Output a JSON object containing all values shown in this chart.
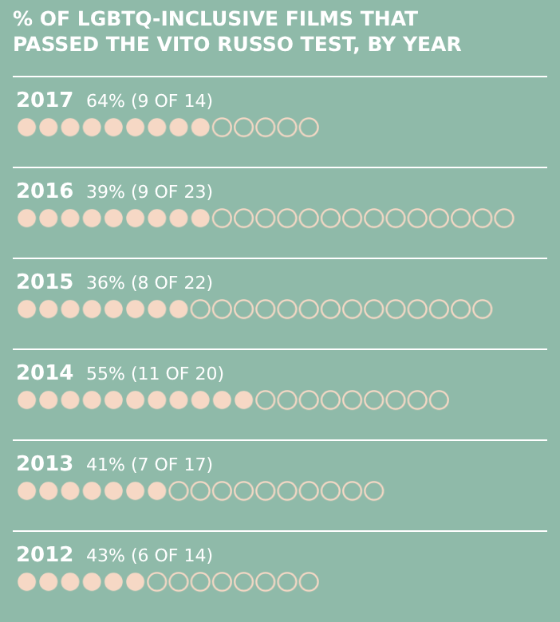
{
  "chart_data": {
    "type": "bar",
    "title": "% OF LGBTQ-INCLUSIVE FILMS THAT PASSED THE VITO RUSSO TEST, BY YEAR",
    "orientation": "horizontal",
    "stacked": true,
    "categories": [
      "2017",
      "2016",
      "2015",
      "2014",
      "2013",
      "2012"
    ],
    "series": [
      {
        "color": "#f6d8c5",
        "values": [
          9,
          9,
          8,
          11,
          7,
          6
        ],
        "value_labels": [
          "64% (9 OF 14)",
          "39% (9 OF 23)",
          "36% (8 OF 22)",
          "55% (11 OF 20)",
          "41% (7 OF 17)",
          "43% (6 OF 14)"
        ]
      },
      {
        "color": "#f6d8c5",
        "values": [
          5,
          14,
          14,
          9,
          10,
          8
        ]
      }
    ]
  }
}
